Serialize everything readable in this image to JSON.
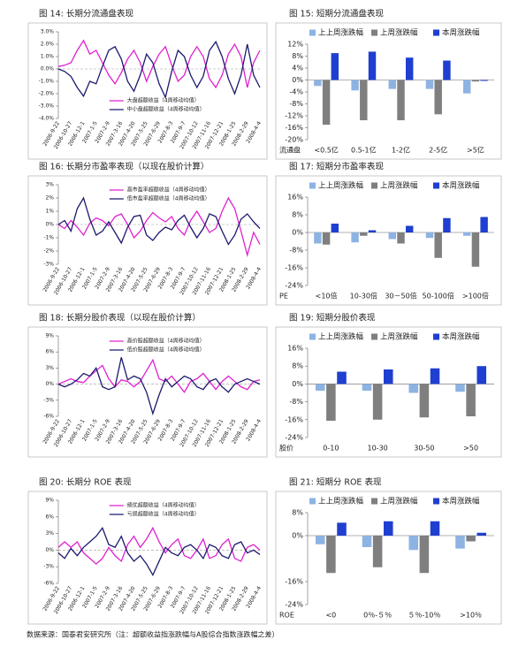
{
  "chart_data": [
    {
      "type": "line",
      "title": "图 14:  长期分流通盘表现",
      "legend": "lower center",
      "categories": [
        "2006-9-22",
        null,
        "2006-10-27",
        null,
        "2006-12-1",
        null,
        "2007-1-5",
        null,
        "2007-2-9",
        null,
        "2007-3-16",
        null,
        "2007-4-20",
        null,
        "2007-5-25",
        null,
        "2007-6-29",
        null,
        "2007-8-3",
        null,
        "2007-9-7",
        null,
        "2007-10-12",
        null,
        "2007-11-16",
        null,
        "2007-12-21",
        null,
        "2008-1-25",
        null,
        "2008-2-29",
        null,
        "2008-4-4"
      ],
      "ylim": [
        -4,
        3
      ],
      "yticks": [
        {
          "value": 3,
          "label": "3.0%"
        },
        {
          "value": 2,
          "label": "2.0%"
        },
        {
          "value": 1,
          "label": "1.0%"
        },
        {
          "value": 0,
          "label": "0.0%"
        },
        {
          "value": -1,
          "label": "-1.0%"
        },
        {
          "value": -2,
          "label": "-2.0%"
        },
        {
          "value": -3,
          "label": "-3.0%"
        },
        {
          "value": -4,
          "label": "-4.0%"
        }
      ],
      "series": [
        {
          "name": "大盘超额收益（4周移动均值）",
          "color": "#e020d0",
          "values": [
            0.2,
            0.3,
            0.5,
            1.5,
            2.3,
            1.2,
            1.5,
            0.5,
            -0.5,
            -1.2,
            -0.3,
            0.8,
            1.5,
            0.5,
            -1.0,
            0.2,
            1.2,
            1.8,
            0.3,
            -1.0,
            -0.5,
            1.0,
            1.8,
            1.0,
            -0.8,
            -1.5,
            -0.5,
            1.2,
            2.0,
            1.0,
            -1.5,
            0.5,
            1.5
          ]
        },
        {
          "name": "中小盘超额收益（4周移动均值）",
          "color": "#1a1a6e",
          "values": [
            0,
            -0.2,
            -0.6,
            -1.5,
            -2.2,
            -1.0,
            -1.2,
            0.2,
            1.5,
            1.8,
            0.8,
            -1.0,
            -1.8,
            -0.5,
            1.2,
            0.5,
            -1.2,
            -2.3,
            -0.2,
            1.5,
            1.0,
            -0.5,
            -1.5,
            -0.6,
            1.5,
            2.2,
            1.0,
            -0.8,
            -2.0,
            -0.5,
            2.0,
            -0.5,
            -1.5
          ]
        }
      ]
    },
    {
      "type": "bar",
      "title": "图 15:  短期分流通盘表现",
      "xlabel": "流通盘",
      "categories": [
        "<0.5亿",
        "0.5-1亿",
        "1-2亿",
        "2-5亿",
        ">5亿"
      ],
      "ylim": [
        -20,
        12
      ],
      "yticks": [
        {
          "value": 12,
          "label": "12%"
        },
        {
          "value": 8,
          "label": "8%"
        },
        {
          "value": 4,
          "label": "4%"
        },
        {
          "value": 0,
          "label": "0%"
        },
        {
          "value": -4,
          "label": "-4%"
        },
        {
          "value": -8,
          "label": "-8%"
        },
        {
          "value": -12,
          "label": "-12%"
        },
        {
          "value": -16,
          "label": "-16%"
        },
        {
          "value": -20,
          "label": "-20%"
        }
      ],
      "series": [
        {
          "name": "上上周涨跌幅",
          "color": "#8db3e2",
          "values": [
            -2,
            -3.5,
            -3,
            -3,
            -4.5
          ]
        },
        {
          "name": "上周涨跌幅",
          "color": "#7f7f7f",
          "values": [
            -15,
            -13.5,
            -13.5,
            -11.5,
            -0.5
          ]
        },
        {
          "name": "本周涨跌幅",
          "color": "#1f3fd0",
          "values": [
            9,
            9.5,
            7.5,
            6.5,
            -0.3
          ]
        }
      ]
    },
    {
      "type": "line",
      "title": "图 16:  长期分市盈率表现（以现在股价计算）",
      "legend": "upper center",
      "categories": [
        "2006-9-22",
        null,
        "2006-10-27",
        null,
        "2006-12-1",
        null,
        "2007-1-5",
        null,
        "2007-2-9",
        null,
        "2007-3-16",
        null,
        "2007-4-20",
        null,
        "2007-5-25",
        null,
        "2007-6-29",
        null,
        "2007-8-3",
        null,
        "2007-9-7",
        null,
        "2007-10-12",
        null,
        "2007-11-16",
        null,
        "2007-12-21",
        null,
        "2008-1-25",
        null,
        "2008-2-29",
        null,
        "2008-4-4"
      ],
      "ylim": [
        -3,
        3
      ],
      "yticks": [
        {
          "value": 3,
          "label": "3%"
        },
        {
          "value": 2,
          "label": "2%"
        },
        {
          "value": 1,
          "label": "1%"
        },
        {
          "value": 0,
          "label": "0%"
        },
        {
          "value": -1,
          "label": "-1%"
        },
        {
          "value": -2,
          "label": "-2%"
        },
        {
          "value": -3,
          "label": "-3%"
        }
      ],
      "series": [
        {
          "name": "高市盈率超额收益（4周移动均值）",
          "color": "#e020d0",
          "values": [
            0,
            -0.3,
            0.3,
            -0.2,
            -0.8,
            0.1,
            0.5,
            0.3,
            -0.1,
            0.6,
            0.8,
            0,
            -1,
            -0.5,
            0.3,
            0.9,
            0.5,
            0.2,
            0.6,
            -0.3,
            -0.8,
            0.3,
            1.0,
            0.2,
            -0.6,
            -0.3,
            1.0,
            2.0,
            1.2,
            -0.5,
            -2.3,
            -0.6,
            -1.5
          ]
        },
        {
          "name": "低市盈率超额收益（4周移动均值）",
          "color": "#1a1a6e",
          "values": [
            0,
            0.3,
            -0.5,
            1.2,
            2.0,
            0.4,
            -0.8,
            -0.5,
            0.2,
            -0.6,
            -1.4,
            -0.2,
            0.6,
            0.7,
            -0.8,
            -1.2,
            -0.6,
            -0.2,
            -0.4,
            0.3,
            0.7,
            -0.2,
            -1.0,
            -0.3,
            0.8,
            0.6,
            -0.5,
            -1.5,
            -0.8,
            0.4,
            0.8,
            0.2,
            -0.3
          ]
        }
      ]
    },
    {
      "type": "bar",
      "title": "图 17:  短期分市盈率表现",
      "xlabel": "PE",
      "categories": [
        "<10倍",
        "10-30倍",
        "30－50倍",
        "50-100倍",
        ">100倍"
      ],
      "ylim": [
        -24,
        16
      ],
      "yticks": [
        {
          "value": 16,
          "label": "16%"
        },
        {
          "value": 8,
          "label": "8%"
        },
        {
          "value": 0,
          "label": "0%"
        },
        {
          "value": -8,
          "label": "-8%"
        },
        {
          "value": -16,
          "label": "-16%"
        },
        {
          "value": -24,
          "label": "-24%"
        }
      ],
      "series": [
        {
          "name": "上上周涨跌幅",
          "color": "#8db3e2",
          "values": [
            -5,
            -4.5,
            -3,
            -2.5,
            -1.5
          ]
        },
        {
          "name": "上周涨跌幅",
          "color": "#7f7f7f",
          "values": [
            -5.5,
            -1.5,
            -5,
            -11.5,
            -15.5
          ]
        },
        {
          "name": "本周涨跌幅",
          "color": "#1f3fd0",
          "values": [
            4,
            1,
            3,
            6.5,
            7
          ]
        }
      ]
    },
    {
      "type": "line",
      "title": "图 18:  长期分股价表现（以现在股价计算）",
      "legend": "upper center",
      "categories": [
        "2006-9-22",
        null,
        "2006-10-27",
        null,
        "2006-12-1",
        null,
        "2007-1-5",
        null,
        "2007-2-9",
        null,
        "2007-3-16",
        null,
        "2007-4-20",
        null,
        "2007-5-25",
        null,
        "2007-6-29",
        null,
        "2007-8-3",
        null,
        "2007-9-7",
        null,
        "2007-10-12",
        null,
        "2007-11-16",
        null,
        "2007-12-21",
        null,
        "2008-1-25",
        null,
        "2008-2-29",
        null,
        "2008-4-4"
      ],
      "ylim": [
        -6,
        9
      ],
      "yticks": [
        {
          "value": 9,
          "label": "9%"
        },
        {
          "value": 6,
          "label": "6%"
        },
        {
          "value": 3,
          "label": "3%"
        },
        {
          "value": 0,
          "label": "0%"
        },
        {
          "value": -3,
          "label": "-3%"
        },
        {
          "value": -6,
          "label": "-6%"
        }
      ],
      "series": [
        {
          "name": "高价股超额收益（4周移动均值）",
          "color": "#e020d0",
          "values": [
            0,
            0.5,
            1,
            0.5,
            0.3,
            1.5,
            2.5,
            3.5,
            1.0,
            -0.5,
            0.8,
            0.5,
            -0.5,
            0.5,
            2.5,
            4.5,
            1.0,
            0.5,
            1.5,
            0,
            -1.5,
            0.5,
            1.0,
            2.0,
            0.5,
            -1,
            0.5,
            1.5,
            0.5,
            -0.5,
            -1.0,
            0.5,
            0.8
          ]
        },
        {
          "name": "低价股超额收益（4周移动均值）",
          "color": "#1a1a6e",
          "values": [
            0,
            -0.5,
            0,
            0.8,
            2,
            1.5,
            3,
            -0.5,
            -1,
            -0.5,
            5,
            0.8,
            1.5,
            1,
            -1.5,
            -5.5,
            -2,
            1.0,
            -0.5,
            0.5,
            1.5,
            1,
            -0.5,
            -1,
            0.5,
            1,
            -0.5,
            -1.5,
            0,
            0.5,
            1,
            0.5,
            0
          ]
        }
      ]
    },
    {
      "type": "bar",
      "title": "图 19:  短期分股价表现",
      "xlabel": "股价",
      "categories": [
        "0-10",
        "10-30",
        "30-50",
        ">50"
      ],
      "ylim": [
        -24,
        16
      ],
      "yticks": [
        {
          "value": 16,
          "label": "16%"
        },
        {
          "value": 8,
          "label": "8%"
        },
        {
          "value": 0,
          "label": "0%"
        },
        {
          "value": -8,
          "label": "-8%"
        },
        {
          "value": -16,
          "label": "-16%"
        },
        {
          "value": -24,
          "label": "-24%"
        }
      ],
      "series": [
        {
          "name": "上上周涨跌幅",
          "color": "#8db3e2",
          "values": [
            -3,
            -3,
            -4,
            -3.5
          ]
        },
        {
          "name": "上周涨跌幅",
          "color": "#7f7f7f",
          "values": [
            -16.5,
            -16,
            -15,
            -14.5
          ]
        },
        {
          "name": "本周涨跌幅",
          "color": "#1f3fd0",
          "values": [
            5.5,
            6.5,
            7,
            8
          ]
        }
      ]
    },
    {
      "type": "line",
      "title": "图 20:  长期分 ROE 表现",
      "legend": "upper center",
      "categories": [
        "2006-9-22",
        null,
        "2006-10-27",
        null,
        "2006-12-1",
        null,
        "2007-1-5",
        null,
        "2007-2-9",
        null,
        "2007-3-16",
        null,
        "2007-4-20",
        null,
        "2007-5-25",
        null,
        "2007-6-29",
        null,
        "2007-8-3",
        null,
        "2007-9-7",
        null,
        "2007-10-12",
        null,
        "2007-11-16",
        null,
        "2007-12-21",
        null,
        "2008-1-25",
        null,
        "2008-2-29",
        null,
        "2008-4-4"
      ],
      "ylim": [
        -6,
        9
      ],
      "yticks": [
        {
          "value": 9,
          "label": "9%"
        },
        {
          "value": 6,
          "label": "6%"
        },
        {
          "value": 3,
          "label": "3%"
        },
        {
          "value": 0,
          "label": "0%"
        },
        {
          "value": -3,
          "label": "-3%"
        },
        {
          "value": -6,
          "label": "-6%"
        }
      ],
      "series": [
        {
          "name": "绩优超额收益（4周移动均值）",
          "color": "#e020d0",
          "values": [
            0.5,
            1.5,
            0.5,
            1.5,
            -0.5,
            -1.5,
            -2.5,
            -1.5,
            0.5,
            -1,
            -2,
            1,
            2.5,
            0.5,
            2,
            4,
            1.5,
            -0.5,
            1,
            2,
            -1,
            -1.5,
            0,
            2,
            -1.5,
            -1,
            1,
            2,
            -1.5,
            -2,
            0.5,
            1,
            0
          ]
        },
        {
          "name": "亏损超额收益（4周移动均值）",
          "color": "#1a1a6e",
          "values": [
            -0.5,
            -1.5,
            0.3,
            -1.0,
            0.5,
            1.5,
            2.5,
            4.0,
            1.0,
            0.5,
            2.5,
            -0.5,
            -2.0,
            -1.0,
            -2.5,
            -4.5,
            -2,
            0.5,
            -0.5,
            -1,
            0.5,
            1,
            0,
            -1.5,
            1,
            0.5,
            -1,
            -1.5,
            1,
            1.5,
            -0.5,
            0,
            -0.8
          ]
        }
      ]
    },
    {
      "type": "bar",
      "title": "图 21:  短期分 ROE 表现",
      "xlabel": "ROE",
      "categories": [
        "<0",
        "0％-５％",
        "５％-10％",
        ">10％"
      ],
      "ylim": [
        -24,
        8
      ],
      "yticks": [
        {
          "value": 8,
          "label": "8%"
        },
        {
          "value": 0,
          "label": "0%"
        },
        {
          "value": -16,
          "label": "-16%"
        },
        {
          "value": -24,
          "label": "-24%"
        }
      ],
      "series": [
        {
          "name": "上上周涨跌幅",
          "color": "#8db3e2",
          "values": [
            -3,
            -4,
            -5,
            -4.5
          ]
        },
        {
          "name": "上周涨跌幅",
          "color": "#7f7f7f",
          "values": [
            -13,
            -11,
            -13,
            -2
          ]
        },
        {
          "name": "本周涨跌幅",
          "color": "#1f3fd0",
          "values": [
            4.5,
            5,
            5,
            1
          ]
        }
      ]
    }
  ],
  "footer": "数据来源：国泰君安研究所（注：超额收益指涨跌幅与A股综合指数涨跌幅之差）"
}
